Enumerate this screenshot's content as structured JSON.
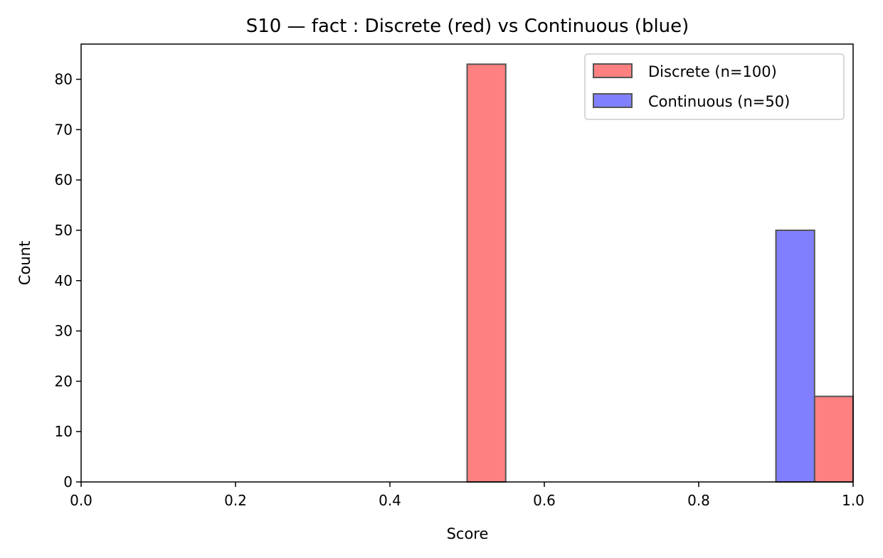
{
  "chart_data": {
    "type": "bar",
    "title": "S10 — fact : Discrete (red) vs Continuous (blue)",
    "xlabel": "Score",
    "ylabel": "Count",
    "xlim": [
      0.0,
      1.0
    ],
    "ylim": [
      0,
      87
    ],
    "x_ticks": [
      "0.0",
      "0.2",
      "0.4",
      "0.6",
      "0.8",
      "1.0"
    ],
    "y_ticks": [
      "0",
      "10",
      "20",
      "30",
      "40",
      "50",
      "60",
      "70",
      "80"
    ],
    "bin_width": 0.05,
    "legend_position": "top-right",
    "grid": false,
    "series": [
      {
        "name": "Discrete (n=100)",
        "color": "#ff8080",
        "bins": [
          {
            "x_start": 0.5,
            "count": 83
          },
          {
            "x_start": 0.95,
            "count": 17
          }
        ]
      },
      {
        "name": "Continuous (n=50)",
        "color": "#8080ff",
        "bins": [
          {
            "x_start": 0.9,
            "count": 50
          }
        ]
      }
    ]
  }
}
